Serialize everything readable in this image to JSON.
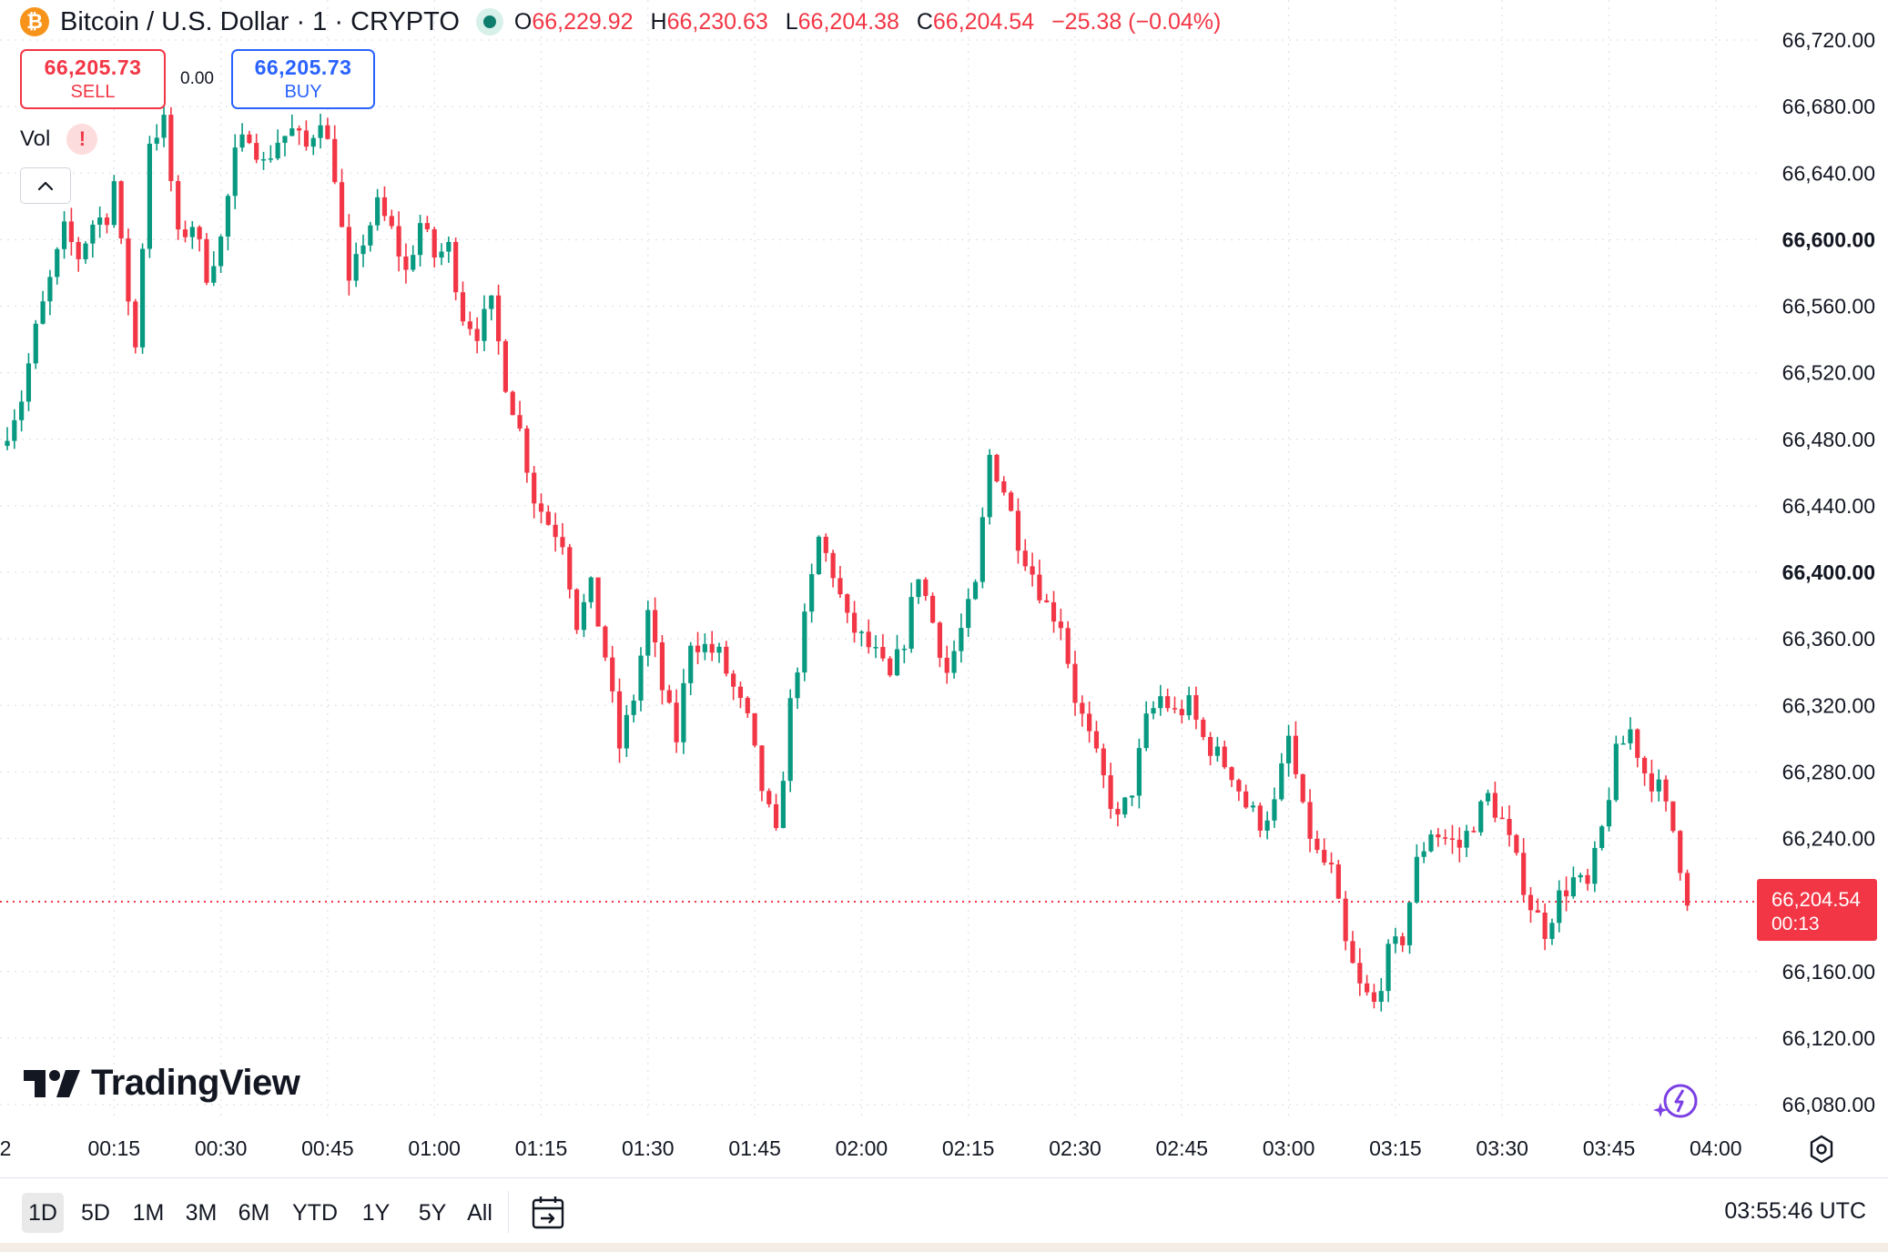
{
  "header": {
    "symbol_title": "Bitcoin / U.S. Dollar · 1 · CRYPTO",
    "coin_glyph": "₿",
    "open_key": "O",
    "open": "66,229.92",
    "high_key": "H",
    "high": "66,230.63",
    "low_key": "L",
    "low": "66,204.38",
    "close_key": "C",
    "close": "66,204.54",
    "change": "−25.38 (−0.04%)"
  },
  "trade": {
    "sell_price": "66,205.73",
    "sell_label": "SELL",
    "spread": "0.00",
    "buy_price": "66,205.73",
    "buy_label": "BUY"
  },
  "indicator": {
    "label": "Vol",
    "warning_glyph": "!"
  },
  "logo": {
    "text": "TradingView"
  },
  "last_price_tag": {
    "price": "66,204.54",
    "countdown": "00:13"
  },
  "bottom_bar": {
    "ranges": [
      {
        "label": "1D",
        "active": true
      },
      {
        "label": "5D",
        "active": false
      },
      {
        "label": "1M",
        "active": false
      },
      {
        "label": "3M",
        "active": false
      },
      {
        "label": "6M",
        "active": false
      },
      {
        "label": "YTD",
        "active": false
      },
      {
        "label": "1Y",
        "active": false
      },
      {
        "label": "5Y",
        "active": false
      },
      {
        "label": "All",
        "active": false
      }
    ],
    "clock": "03:55:46 UTC"
  },
  "icons": {
    "goto_date": "calendar-goto-icon",
    "settings": "gear-icon",
    "assistant": "sparkle-icon",
    "collapse": "chevron-up-icon"
  },
  "colors": {
    "up": "#089981",
    "down": "#f23645",
    "grid": "#dfe2e8",
    "text": "#131722",
    "buy": "#2962ff"
  },
  "chart_data": {
    "type": "candlestick",
    "timeframe": "1",
    "y_axis": {
      "ticks": [
        "66,720.00",
        "66,680.00",
        "66,640.00",
        "66,600.00",
        "66,560.00",
        "66,520.00",
        "66,480.00",
        "66,440.00",
        "66,400.00",
        "66,360.00",
        "66,320.00",
        "66,280.00",
        "66,240.00",
        "66,160.00",
        "66,120.00",
        "66,080.00"
      ],
      "bold_ticks": [
        "66,600.00",
        "66,400.00"
      ],
      "range": [
        66066,
        66730
      ]
    },
    "x_axis": {
      "ticks": [
        "2",
        "00:15",
        "00:30",
        "00:45",
        "01:00",
        "01:15",
        "01:30",
        "01:45",
        "02:00",
        "02:15",
        "02:30",
        "02:45",
        "03:00",
        "03:15",
        "03:30",
        "03:45",
        "04:00"
      ],
      "start_minute": 0,
      "end_minute": 236.5
    },
    "last_price": 66204.54,
    "series": [
      {
        "name": "BTCUSD",
        "key_points": [
          [
            0,
            66486
          ],
          [
            2,
            66505
          ],
          [
            4,
            66545
          ],
          [
            6,
            66575
          ],
          [
            8,
            66605
          ],
          [
            10,
            66590
          ],
          [
            12,
            66610
          ],
          [
            14,
            66615
          ],
          [
            15,
            66635
          ],
          [
            16,
            66595
          ],
          [
            18,
            66535
          ],
          [
            20,
            66660
          ],
          [
            22,
            66670
          ],
          [
            24,
            66600
          ],
          [
            26,
            66610
          ],
          [
            28,
            66580
          ],
          [
            30,
            66600
          ],
          [
            32,
            66650
          ],
          [
            34,
            66665
          ],
          [
            36,
            66645
          ],
          [
            38,
            66660
          ],
          [
            40,
            66665
          ],
          [
            42,
            66655
          ],
          [
            44,
            66675
          ],
          [
            46,
            66640
          ],
          [
            48,
            66570
          ],
          [
            50,
            66600
          ],
          [
            52,
            66620
          ],
          [
            54,
            66605
          ],
          [
            56,
            66580
          ],
          [
            58,
            66610
          ],
          [
            60,
            66590
          ],
          [
            62,
            66595
          ],
          [
            64,
            66555
          ],
          [
            66,
            66545
          ],
          [
            68,
            66560
          ],
          [
            70,
            66515
          ],
          [
            72,
            66485
          ],
          [
            74,
            66445
          ],
          [
            76,
            66430
          ],
          [
            78,
            66420
          ],
          [
            80,
            66370
          ],
          [
            82,
            66390
          ],
          [
            84,
            66350
          ],
          [
            86,
            66295
          ],
          [
            88,
            66325
          ],
          [
            90,
            66375
          ],
          [
            92,
            66330
          ],
          [
            94,
            66300
          ],
          [
            96,
            66360
          ],
          [
            98,
            66355
          ],
          [
            100,
            66350
          ],
          [
            102,
            66330
          ],
          [
            104,
            66310
          ],
          [
            106,
            66270
          ],
          [
            108,
            66240
          ],
          [
            110,
            66320
          ],
          [
            112,
            66370
          ],
          [
            114,
            66420
          ],
          [
            116,
            66400
          ],
          [
            118,
            66370
          ],
          [
            120,
            66360
          ],
          [
            122,
            66350
          ],
          [
            124,
            66335
          ],
          [
            126,
            66360
          ],
          [
            128,
            66400
          ],
          [
            130,
            66370
          ],
          [
            132,
            66340
          ],
          [
            134,
            66365
          ],
          [
            136,
            66390
          ],
          [
            138,
            66470
          ],
          [
            140,
            66450
          ],
          [
            142,
            66420
          ],
          [
            144,
            66400
          ],
          [
            146,
            66380
          ],
          [
            148,
            66370
          ],
          [
            150,
            66325
          ],
          [
            152,
            66300
          ],
          [
            154,
            66275
          ],
          [
            156,
            66250
          ],
          [
            158,
            66270
          ],
          [
            160,
            66310
          ],
          [
            162,
            66325
          ],
          [
            164,
            66315
          ],
          [
            166,
            66320
          ],
          [
            168,
            66300
          ],
          [
            170,
            66290
          ],
          [
            172,
            66280
          ],
          [
            174,
            66260
          ],
          [
            176,
            66250
          ],
          [
            178,
            66260
          ],
          [
            180,
            66300
          ],
          [
            182,
            66255
          ],
          [
            184,
            66230
          ],
          [
            186,
            66220
          ],
          [
            188,
            66175
          ],
          [
            190,
            66150
          ],
          [
            192,
            66140
          ],
          [
            194,
            66170
          ],
          [
            196,
            66180
          ],
          [
            198,
            66225
          ],
          [
            200,
            66245
          ],
          [
            202,
            66240
          ],
          [
            204,
            66235
          ],
          [
            206,
            66250
          ],
          [
            208,
            66265
          ],
          [
            210,
            66250
          ],
          [
            212,
            66225
          ],
          [
            214,
            66200
          ],
          [
            216,
            66185
          ],
          [
            218,
            66205
          ],
          [
            220,
            66215
          ],
          [
            222,
            66210
          ],
          [
            224,
            66245
          ],
          [
            226,
            66290
          ],
          [
            228,
            66305
          ],
          [
            230,
            66280
          ],
          [
            232,
            66270
          ],
          [
            234,
            66245
          ],
          [
            236,
            66205
          ]
        ]
      }
    ]
  }
}
